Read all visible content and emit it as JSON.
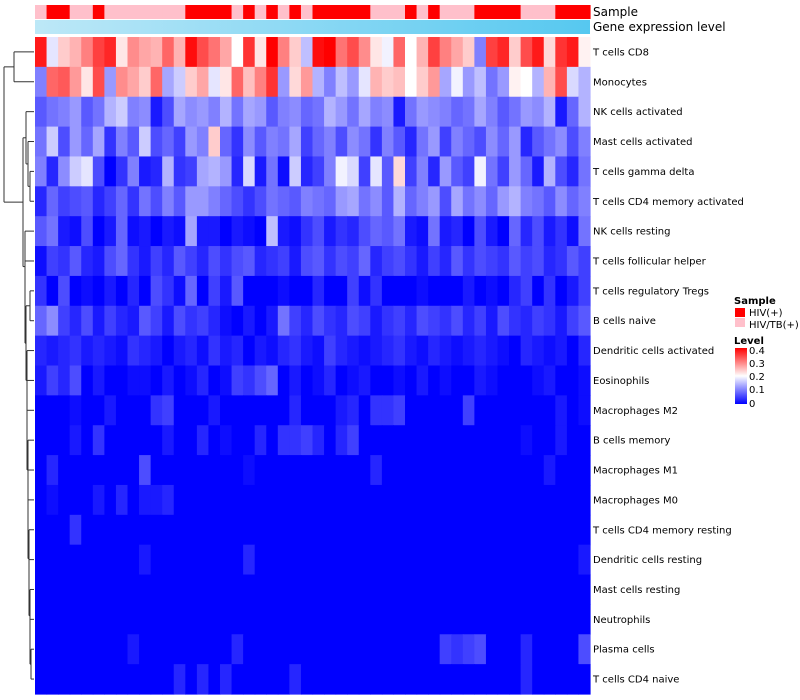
{
  "chart_data": {
    "type": "heatmap",
    "annotations": {
      "sample_label": "Sample",
      "gene_label": "Gene expression level"
    },
    "sample_groups": [
      "HIV/TB(+)",
      "HIV(+)",
      "HIV(+)",
      "HIV/TB(+)",
      "HIV/TB(+)",
      "HIV(+)",
      "HIV/TB(+)",
      "HIV/TB(+)",
      "HIV/TB(+)",
      "HIV/TB(+)",
      "HIV/TB(+)",
      "HIV/TB(+)",
      "HIV/TB(+)",
      "HIV(+)",
      "HIV(+)",
      "HIV(+)",
      "HIV(+)",
      "HIV/TB(+)",
      "HIV(+)",
      "HIV/TB(+)",
      "HIV(+)",
      "HIV/TB(+)",
      "HIV(+)",
      "HIV/TB(+)",
      "HIV(+)",
      "HIV(+)",
      "HIV(+)",
      "HIV(+)",
      "HIV(+)",
      "HIV/TB(+)",
      "HIV/TB(+)",
      "HIV/TB(+)",
      "HIV(+)",
      "HIV/TB(+)",
      "HIV(+)",
      "HIV/TB(+)",
      "HIV/TB(+)",
      "HIV/TB(+)",
      "HIV(+)",
      "HIV(+)",
      "HIV(+)",
      "HIV(+)",
      "HIV/TB(+)",
      "HIV/TB(+)",
      "HIV/TB(+)",
      "HIV(+)",
      "HIV(+)",
      "HIV(+)"
    ],
    "rows": [
      "T cells CD8",
      "Monocytes",
      "NK cells activated",
      "Mast cells activated",
      "T cells gamma delta",
      "T cells CD4 memory activated",
      "NK cells resting",
      "T cells follicular helper",
      "T cells regulatory  Tregs",
      "B cells naive",
      "Dendritic cells activated",
      "Eosinophils",
      "Macrophages M2",
      "B cells memory",
      "Macrophages M1",
      "Macrophages M0",
      "T cells CD4 memory resting",
      "Dendritic cells resting",
      "Mast cells resting",
      "Neutrophils",
      "Plasma cells",
      "T cells CD4 naive"
    ],
    "row_values": [
      [
        0.38,
        0.18,
        0.24,
        0.26,
        0.3,
        0.35,
        0.37,
        0.22,
        0.29,
        0.27,
        0.26,
        0.32,
        0.26,
        0.39,
        0.34,
        0.31,
        0.27,
        0.2,
        0.36,
        0.22,
        0.4,
        0.3,
        0.24,
        0.15,
        0.39,
        0.4,
        0.31,
        0.34,
        0.29,
        0.22,
        0.19,
        0.32,
        0.2,
        0.26,
        0.35,
        0.3,
        0.27,
        0.24,
        0.1,
        0.35,
        0.37,
        0.24,
        0.34,
        0.38,
        0.23,
        0.36,
        0.38,
        0.21
      ],
      [
        0.1,
        0.32,
        0.33,
        0.28,
        0.22,
        0.34,
        0.12,
        0.29,
        0.27,
        0.24,
        0.32,
        0.13,
        0.16,
        0.24,
        0.27,
        0.18,
        0.22,
        0.32,
        0.25,
        0.3,
        0.36,
        0.12,
        0.23,
        0.28,
        0.14,
        0.1,
        0.15,
        0.12,
        0.18,
        0.26,
        0.24,
        0.25,
        0.2,
        0.24,
        0.28,
        0.13,
        0.19,
        0.12,
        0.15,
        0.09,
        0.12,
        0.21,
        0.2,
        0.14,
        0.26,
        0.34,
        0.17,
        0.14
      ],
      [
        0.07,
        0.09,
        0.1,
        0.12,
        0.07,
        0.09,
        0.14,
        0.16,
        0.1,
        0.11,
        0.02,
        0.06,
        0.13,
        0.11,
        0.12,
        0.1,
        0.14,
        0.09,
        0.13,
        0.12,
        0.07,
        0.1,
        0.11,
        0.08,
        0.09,
        0.14,
        0.12,
        0.09,
        0.13,
        0.1,
        0.11,
        0.02,
        0.09,
        0.12,
        0.11,
        0.1,
        0.08,
        0.09,
        0.13,
        0.1,
        0.07,
        0.09,
        0.12,
        0.11,
        0.14,
        0.02,
        0.08,
        0.14
      ],
      [
        0.09,
        0.16,
        0.06,
        0.12,
        0.08,
        0.13,
        0.04,
        0.1,
        0.07,
        0.16,
        0.06,
        0.08,
        0.05,
        0.12,
        0.1,
        0.24,
        0.08,
        0.04,
        0.11,
        0.07,
        0.1,
        0.09,
        0.13,
        0.05,
        0.08,
        0.1,
        0.06,
        0.11,
        0.09,
        0.04,
        0.1,
        0.07,
        0.03,
        0.09,
        0.12,
        0.05,
        0.1,
        0.08,
        0.06,
        0.11,
        0.08,
        0.12,
        0.03,
        0.07,
        0.09,
        0.11,
        0.06,
        0.1
      ],
      [
        0.1,
        0.03,
        0.11,
        0.16,
        0.18,
        0.06,
        0.0,
        0.04,
        0.1,
        0.02,
        0.03,
        0.14,
        0.04,
        0.05,
        0.13,
        0.14,
        0.12,
        0.03,
        0.17,
        0.02,
        0.09,
        0.01,
        0.16,
        0.03,
        0.05,
        0.1,
        0.19,
        0.17,
        0.05,
        0.18,
        0.07,
        0.23,
        0.05,
        0.1,
        0.03,
        0.12,
        0.07,
        0.05,
        0.19,
        0.09,
        0.05,
        0.12,
        0.08,
        0.02,
        0.14,
        0.06,
        0.03,
        0.09
      ],
      [
        0.03,
        0.08,
        0.05,
        0.06,
        0.07,
        0.03,
        0.05,
        0.08,
        0.04,
        0.09,
        0.06,
        0.1,
        0.07,
        0.12,
        0.12,
        0.1,
        0.08,
        0.06,
        0.04,
        0.06,
        0.09,
        0.08,
        0.07,
        0.1,
        0.09,
        0.08,
        0.12,
        0.13,
        0.09,
        0.11,
        0.07,
        0.14,
        0.08,
        0.1,
        0.12,
        0.06,
        0.13,
        0.09,
        0.11,
        0.08,
        0.12,
        0.14,
        0.1,
        0.09,
        0.07,
        0.11,
        0.08,
        0.1
      ],
      [
        0.07,
        0.09,
        0.02,
        0.01,
        0.06,
        0.0,
        0.02,
        0.08,
        0.01,
        0.02,
        0.0,
        0.02,
        0.01,
        0.13,
        0.02,
        0.02,
        0.0,
        0.02,
        0.01,
        0.0,
        0.15,
        0.02,
        0.01,
        0.04,
        0.06,
        0.02,
        0.04,
        0.03,
        0.06,
        0.08,
        0.07,
        0.09,
        0.02,
        0.01,
        0.09,
        0.02,
        0.03,
        0.0,
        0.06,
        0.02,
        0.0,
        0.08,
        0.03,
        0.06,
        0.02,
        0.04,
        0.01,
        0.09
      ],
      [
        0.01,
        0.05,
        0.04,
        0.07,
        0.03,
        0.02,
        0.06,
        0.08,
        0.04,
        0.02,
        0.05,
        0.03,
        0.07,
        0.05,
        0.03,
        0.06,
        0.04,
        0.06,
        0.07,
        0.03,
        0.04,
        0.05,
        0.02,
        0.06,
        0.07,
        0.04,
        0.06,
        0.05,
        0.08,
        0.03,
        0.05,
        0.06,
        0.04,
        0.02,
        0.05,
        0.03,
        0.07,
        0.04,
        0.06,
        0.05,
        0.04,
        0.07,
        0.05,
        0.06,
        0.03,
        0.04,
        0.07,
        0.05
      ],
      [
        0.04,
        0.0,
        0.06,
        0.0,
        0.01,
        0.0,
        0.02,
        0.0,
        0.03,
        0.0,
        0.06,
        0.04,
        0.01,
        0.08,
        0.0,
        0.05,
        0.02,
        0.07,
        0.0,
        0.0,
        0.0,
        0.01,
        0.0,
        0.0,
        0.03,
        0.0,
        0.0,
        0.05,
        0.01,
        0.04,
        0.0,
        0.0,
        0.0,
        0.01,
        0.0,
        0.0,
        0.0,
        0.02,
        0.0,
        0.01,
        0.0,
        0.03,
        0.05,
        0.0,
        0.04,
        0.0,
        0.02,
        0.05
      ],
      [
        0.08,
        0.11,
        0.05,
        0.03,
        0.06,
        0.02,
        0.05,
        0.03,
        0.02,
        0.07,
        0.05,
        0.02,
        0.06,
        0.04,
        0.05,
        0.03,
        0.01,
        0.0,
        0.02,
        0.0,
        0.02,
        0.09,
        0.05,
        0.03,
        0.06,
        0.04,
        0.03,
        0.06,
        0.05,
        0.02,
        0.04,
        0.05,
        0.03,
        0.06,
        0.05,
        0.04,
        0.06,
        0.03,
        0.05,
        0.02,
        0.06,
        0.04,
        0.03,
        0.05,
        0.04,
        0.02,
        0.05,
        0.07
      ],
      [
        0.03,
        0.02,
        0.03,
        0.04,
        0.02,
        0.03,
        0.02,
        0.01,
        0.04,
        0.03,
        0.02,
        0.0,
        0.02,
        0.03,
        0.01,
        0.04,
        0.02,
        0.03,
        0.0,
        0.02,
        0.01,
        0.03,
        0.04,
        0.02,
        0.01,
        0.05,
        0.03,
        0.02,
        0.01,
        0.02,
        0.03,
        0.04,
        0.02,
        0.01,
        0.03,
        0.02,
        0.01,
        0.02,
        0.03,
        0.02,
        0.01,
        0.0,
        0.03,
        0.02,
        0.01,
        0.02,
        0.0,
        0.03
      ],
      [
        0.02,
        0.05,
        0.03,
        0.06,
        0.0,
        0.02,
        0.0,
        0.0,
        0.01,
        0.01,
        0.0,
        0.02,
        0.0,
        0.01,
        0.03,
        0.0,
        0.01,
        0.05,
        0.04,
        0.06,
        0.08,
        0.0,
        0.02,
        0.0,
        0.01,
        0.03,
        0.0,
        0.01,
        0.02,
        0.0,
        0.0,
        0.01,
        0.0,
        0.02,
        0.0,
        0.01,
        0.0,
        0.0,
        0.02,
        0.01,
        0.0,
        0.0,
        0.0,
        0.01,
        0.02,
        0.0,
        0.0,
        0.01
      ],
      [
        0.0,
        0.0,
        0.0,
        0.01,
        0.0,
        0.0,
        0.02,
        0.0,
        0.0,
        0.0,
        0.04,
        0.05,
        0.0,
        0.0,
        0.0,
        0.02,
        0.0,
        0.0,
        0.0,
        0.0,
        0.0,
        0.0,
        0.03,
        0.0,
        0.0,
        0.0,
        0.02,
        0.03,
        0.0,
        0.04,
        0.04,
        0.05,
        0.0,
        0.0,
        0.0,
        0.0,
        0.0,
        0.05,
        0.0,
        0.0,
        0.0,
        0.0,
        0.0,
        0.0,
        0.0,
        0.02,
        0.0,
        0.01
      ],
      [
        0.0,
        0.0,
        0.0,
        0.02,
        0.0,
        0.04,
        0.0,
        0.0,
        0.0,
        0.0,
        0.0,
        0.02,
        0.0,
        0.0,
        0.03,
        0.0,
        0.01,
        0.0,
        0.0,
        0.03,
        0.0,
        0.04,
        0.04,
        0.05,
        0.03,
        0.0,
        0.03,
        0.05,
        0.0,
        0.0,
        0.0,
        0.0,
        0.0,
        0.0,
        0.0,
        0.0,
        0.0,
        0.0,
        0.0,
        0.0,
        0.0,
        0.0,
        0.01,
        0.0,
        0.0,
        0.02,
        0.0,
        0.0
      ],
      [
        0.0,
        0.03,
        0.0,
        0.0,
        0.0,
        0.0,
        0.0,
        0.0,
        0.0,
        0.06,
        0.0,
        0.0,
        0.0,
        0.0,
        0.0,
        0.0,
        0.0,
        0.0,
        0.01,
        0.0,
        0.0,
        0.0,
        0.0,
        0.0,
        0.0,
        0.0,
        0.0,
        0.0,
        0.0,
        0.03,
        0.0,
        0.0,
        0.0,
        0.0,
        0.0,
        0.0,
        0.0,
        0.0,
        0.0,
        0.0,
        0.0,
        0.0,
        0.0,
        0.0,
        0.02,
        0.0,
        0.0,
        0.0
      ],
      [
        0.0,
        0.01,
        0.0,
        0.0,
        0.0,
        0.02,
        0.0,
        0.03,
        0.0,
        0.02,
        0.02,
        0.03,
        0.0,
        0.0,
        0.0,
        0.0,
        0.0,
        0.0,
        0.0,
        0.0,
        0.0,
        0.0,
        0.0,
        0.0,
        0.0,
        0.0,
        0.0,
        0.0,
        0.0,
        0.0,
        0.0,
        0.0,
        0.0,
        0.0,
        0.0,
        0.0,
        0.0,
        0.0,
        0.0,
        0.0,
        0.0,
        0.0,
        0.0,
        0.0,
        0.0,
        0.0,
        0.0,
        0.0
      ],
      [
        0.0,
        0.0,
        0.0,
        0.04,
        0.0,
        0.0,
        0.0,
        0.0,
        0.0,
        0.0,
        0.0,
        0.0,
        0.0,
        0.0,
        0.0,
        0.0,
        0.0,
        0.0,
        0.0,
        0.0,
        0.0,
        0.0,
        0.0,
        0.0,
        0.0,
        0.0,
        0.0,
        0.0,
        0.0,
        0.0,
        0.0,
        0.0,
        0.0,
        0.0,
        0.0,
        0.0,
        0.0,
        0.0,
        0.0,
        0.0,
        0.0,
        0.0,
        0.0,
        0.0,
        0.0,
        0.0,
        0.0,
        0.0
      ],
      [
        0.0,
        0.0,
        0.0,
        0.0,
        0.0,
        0.0,
        0.0,
        0.0,
        0.0,
        0.02,
        0.0,
        0.0,
        0.0,
        0.0,
        0.0,
        0.0,
        0.0,
        0.0,
        0.03,
        0.0,
        0.0,
        0.0,
        0.0,
        0.0,
        0.0,
        0.0,
        0.0,
        0.0,
        0.0,
        0.0,
        0.0,
        0.0,
        0.0,
        0.0,
        0.0,
        0.0,
        0.0,
        0.0,
        0.0,
        0.0,
        0.0,
        0.0,
        0.0,
        0.0,
        0.0,
        0.0,
        0.0,
        0.02
      ],
      [
        0.0,
        0.0,
        0.0,
        0.0,
        0.0,
        0.0,
        0.0,
        0.0,
        0.0,
        0.0,
        0.0,
        0.0,
        0.0,
        0.0,
        0.0,
        0.0,
        0.0,
        0.0,
        0.0,
        0.0,
        0.0,
        0.0,
        0.0,
        0.0,
        0.0,
        0.0,
        0.0,
        0.0,
        0.0,
        0.0,
        0.0,
        0.0,
        0.0,
        0.0,
        0.0,
        0.0,
        0.0,
        0.0,
        0.0,
        0.0,
        0.0,
        0.0,
        0.0,
        0.0,
        0.0,
        0.0,
        0.0,
        0.0
      ],
      [
        0.0,
        0.0,
        0.0,
        0.0,
        0.0,
        0.0,
        0.0,
        0.0,
        0.0,
        0.0,
        0.0,
        0.0,
        0.0,
        0.0,
        0.0,
        0.0,
        0.0,
        0.0,
        0.0,
        0.0,
        0.0,
        0.0,
        0.0,
        0.0,
        0.0,
        0.0,
        0.0,
        0.0,
        0.0,
        0.0,
        0.0,
        0.0,
        0.0,
        0.0,
        0.0,
        0.0,
        0.0,
        0.0,
        0.0,
        0.0,
        0.0,
        0.0,
        0.0,
        0.0,
        0.0,
        0.0,
        0.0,
        0.0
      ],
      [
        0.0,
        0.0,
        0.0,
        0.0,
        0.0,
        0.0,
        0.0,
        0.0,
        0.02,
        0.0,
        0.0,
        0.0,
        0.0,
        0.0,
        0.0,
        0.0,
        0.0,
        0.03,
        0.0,
        0.0,
        0.0,
        0.0,
        0.0,
        0.0,
        0.0,
        0.0,
        0.0,
        0.0,
        0.0,
        0.0,
        0.0,
        0.0,
        0.0,
        0.0,
        0.0,
        0.05,
        0.04,
        0.05,
        0.06,
        0.0,
        0.0,
        0.0,
        0.03,
        0.0,
        0.0,
        0.0,
        0.0,
        0.06
      ],
      [
        0.0,
        0.0,
        0.0,
        0.0,
        0.0,
        0.0,
        0.0,
        0.0,
        0.0,
        0.0,
        0.0,
        0.0,
        0.03,
        0.0,
        0.03,
        0.0,
        0.03,
        0.0,
        0.0,
        0.0,
        0.0,
        0.0,
        0.03,
        0.0,
        0.0,
        0.0,
        0.0,
        0.0,
        0.0,
        0.0,
        0.0,
        0.0,
        0.0,
        0.0,
        0.0,
        0.0,
        0.0,
        0.0,
        0.0,
        0.0,
        0.0,
        0.0,
        0.03,
        0.0,
        0.0,
        0.0,
        0.0,
        0.0
      ]
    ],
    "color_scale": {
      "min": 0,
      "mid": 0.2,
      "max": 0.4,
      "low_color": "#0000ff",
      "mid_color": "#ffffff",
      "high_color": "#ff0000"
    },
    "legend": {
      "sample_title": "Sample",
      "sample_items": [
        {
          "label": "HIV(+)",
          "color": "#ff0000"
        },
        {
          "label": "HIV/TB(+)",
          "color": "#ffc0cb"
        }
      ],
      "level_title": "Level",
      "level_ticks": [
        "0.4",
        "0.3",
        "0.2",
        "0.1",
        "0"
      ]
    },
    "gene_bar_colors": [
      "#bde8f7",
      "#56c8f0"
    ]
  }
}
